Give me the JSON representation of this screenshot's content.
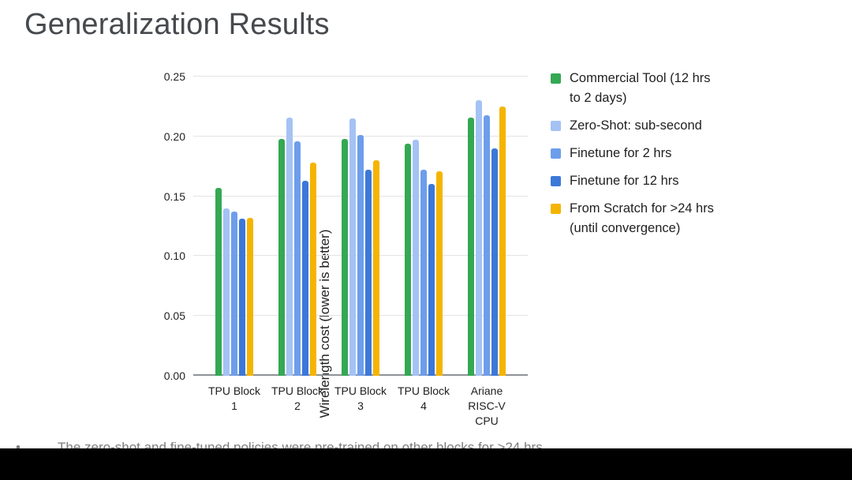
{
  "slide": {
    "title": "Generalization Results",
    "footnote_bullet": "•",
    "footnote": "The zero-shot and fine-tuned policies were pre-trained on other blocks for >24 hrs"
  },
  "chart_data": {
    "type": "bar",
    "title": "",
    "xlabel": "",
    "ylabel": "Wirelength cost (lower is better)",
    "ylim": [
      0,
      0.25
    ],
    "ytick_step": 0.05,
    "ytick_labels": [
      "0.00",
      "0.05",
      "0.10",
      "0.15",
      "0.20",
      "0.25"
    ],
    "grid": true,
    "legend_position": "right",
    "categories": [
      "TPU Block 1",
      "TPU Block 2",
      "TPU Block 3",
      "TPU Block 4",
      "Ariane RISC-V CPU"
    ],
    "series": [
      {
        "name": "Commercial Tool (12 hrs to 2 days)",
        "color": "#34A853",
        "values": [
          0.157,
          0.198,
          0.198,
          0.194,
          0.216
        ]
      },
      {
        "name": "Zero-Shot: sub-second",
        "color": "#A4C2F4",
        "values": [
          0.14,
          0.216,
          0.215,
          0.197,
          0.23
        ]
      },
      {
        "name": "Finetune for 2 hrs",
        "color": "#6D9EEB",
        "values": [
          0.137,
          0.196,
          0.201,
          0.172,
          0.218
        ]
      },
      {
        "name": "Finetune for 12 hrs",
        "color": "#3C78D8",
        "values": [
          0.131,
          0.163,
          0.172,
          0.16,
          0.19
        ]
      },
      {
        "name": "From Scratch for >24 hrs (until convergence)",
        "color": "#F5B400",
        "values": [
          0.132,
          0.178,
          0.18,
          0.171,
          0.225
        ]
      }
    ]
  },
  "colors": {
    "background": "#FFFFFF",
    "title_text": "#46494D",
    "axis_text": "#1F1F1F",
    "gridline": "#E4E4E4",
    "axis_line": "#8F9398",
    "footnote_text": "#7D7D7D",
    "letterbox": "#000000"
  }
}
